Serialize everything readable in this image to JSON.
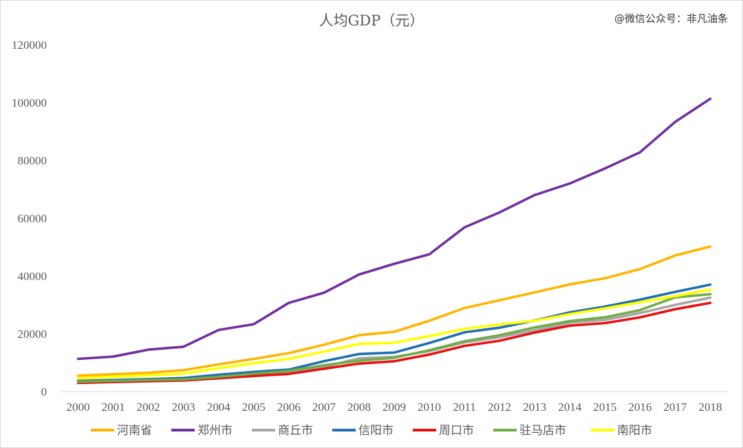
{
  "watermark": "@微信公众号：非凡油条",
  "chart_data": {
    "type": "line",
    "title": "人均GDP（元）",
    "xlabel": "",
    "ylabel": "",
    "ylim": [
      0,
      120000
    ],
    "yticks": [
      0,
      20000,
      40000,
      60000,
      80000,
      100000,
      120000
    ],
    "grid": false,
    "legend": "bottom",
    "categories": [
      "2000",
      "2001",
      "2002",
      "2003",
      "2004",
      "2005",
      "2006",
      "2007",
      "2008",
      "2009",
      "2010",
      "2011",
      "2012",
      "2013",
      "2014",
      "2015",
      "2016",
      "2017",
      "2018"
    ],
    "series": [
      {
        "name": "河南省",
        "color": "#FFB500",
        "values": [
          5500,
          6000,
          6500,
          7400,
          9400,
          11300,
          13300,
          16200,
          19500,
          20700,
          24500,
          28900,
          31600,
          34300,
          37100,
          39200,
          42400,
          47100,
          50200
        ]
      },
      {
        "name": "郑州市",
        "color": "#7030A0",
        "values": [
          11300,
          12100,
          14500,
          15500,
          21300,
          23300,
          30700,
          34200,
          40500,
          44200,
          47500,
          56800,
          62000,
          68000,
          72000,
          77200,
          82800,
          93300,
          101300
        ]
      },
      {
        "name": "商丘市",
        "color": "#A6A6A6",
        "values": [
          3300,
          3600,
          4000,
          4200,
          5000,
          5800,
          6700,
          8500,
          11500,
          12000,
          14000,
          17000,
          18800,
          21200,
          23800,
          24800,
          27200,
          30000,
          32500
        ]
      },
      {
        "name": "信阳市",
        "color": "#1F6FB2",
        "values": [
          3700,
          4000,
          4300,
          4700,
          5800,
          6800,
          7600,
          10500,
          13000,
          13500,
          16800,
          20500,
          22100,
          24600,
          27400,
          29400,
          31800,
          34500,
          37000
        ]
      },
      {
        "name": "周口市",
        "color": "#E81010",
        "values": [
          3000,
          3300,
          3600,
          3800,
          4600,
          5400,
          6100,
          7900,
          9700,
          10500,
          12800,
          15800,
          17600,
          20400,
          22800,
          23700,
          25700,
          28500,
          30700
        ]
      },
      {
        "name": "驻马店市",
        "color": "#70AD47",
        "values": [
          3400,
          3700,
          4000,
          4200,
          5100,
          6200,
          7200,
          9100,
          10700,
          11700,
          14300,
          17400,
          19500,
          22200,
          24400,
          25700,
          28200,
          32600,
          33700
        ]
      },
      {
        "name": "南阳市",
        "color": "#FFFF00",
        "values": [
          4600,
          5100,
          5600,
          6200,
          8100,
          9800,
          11300,
          13800,
          16500,
          16900,
          19200,
          21700,
          23200,
          24500,
          26800,
          28800,
          30900,
          33000,
          35300
        ]
      }
    ]
  }
}
